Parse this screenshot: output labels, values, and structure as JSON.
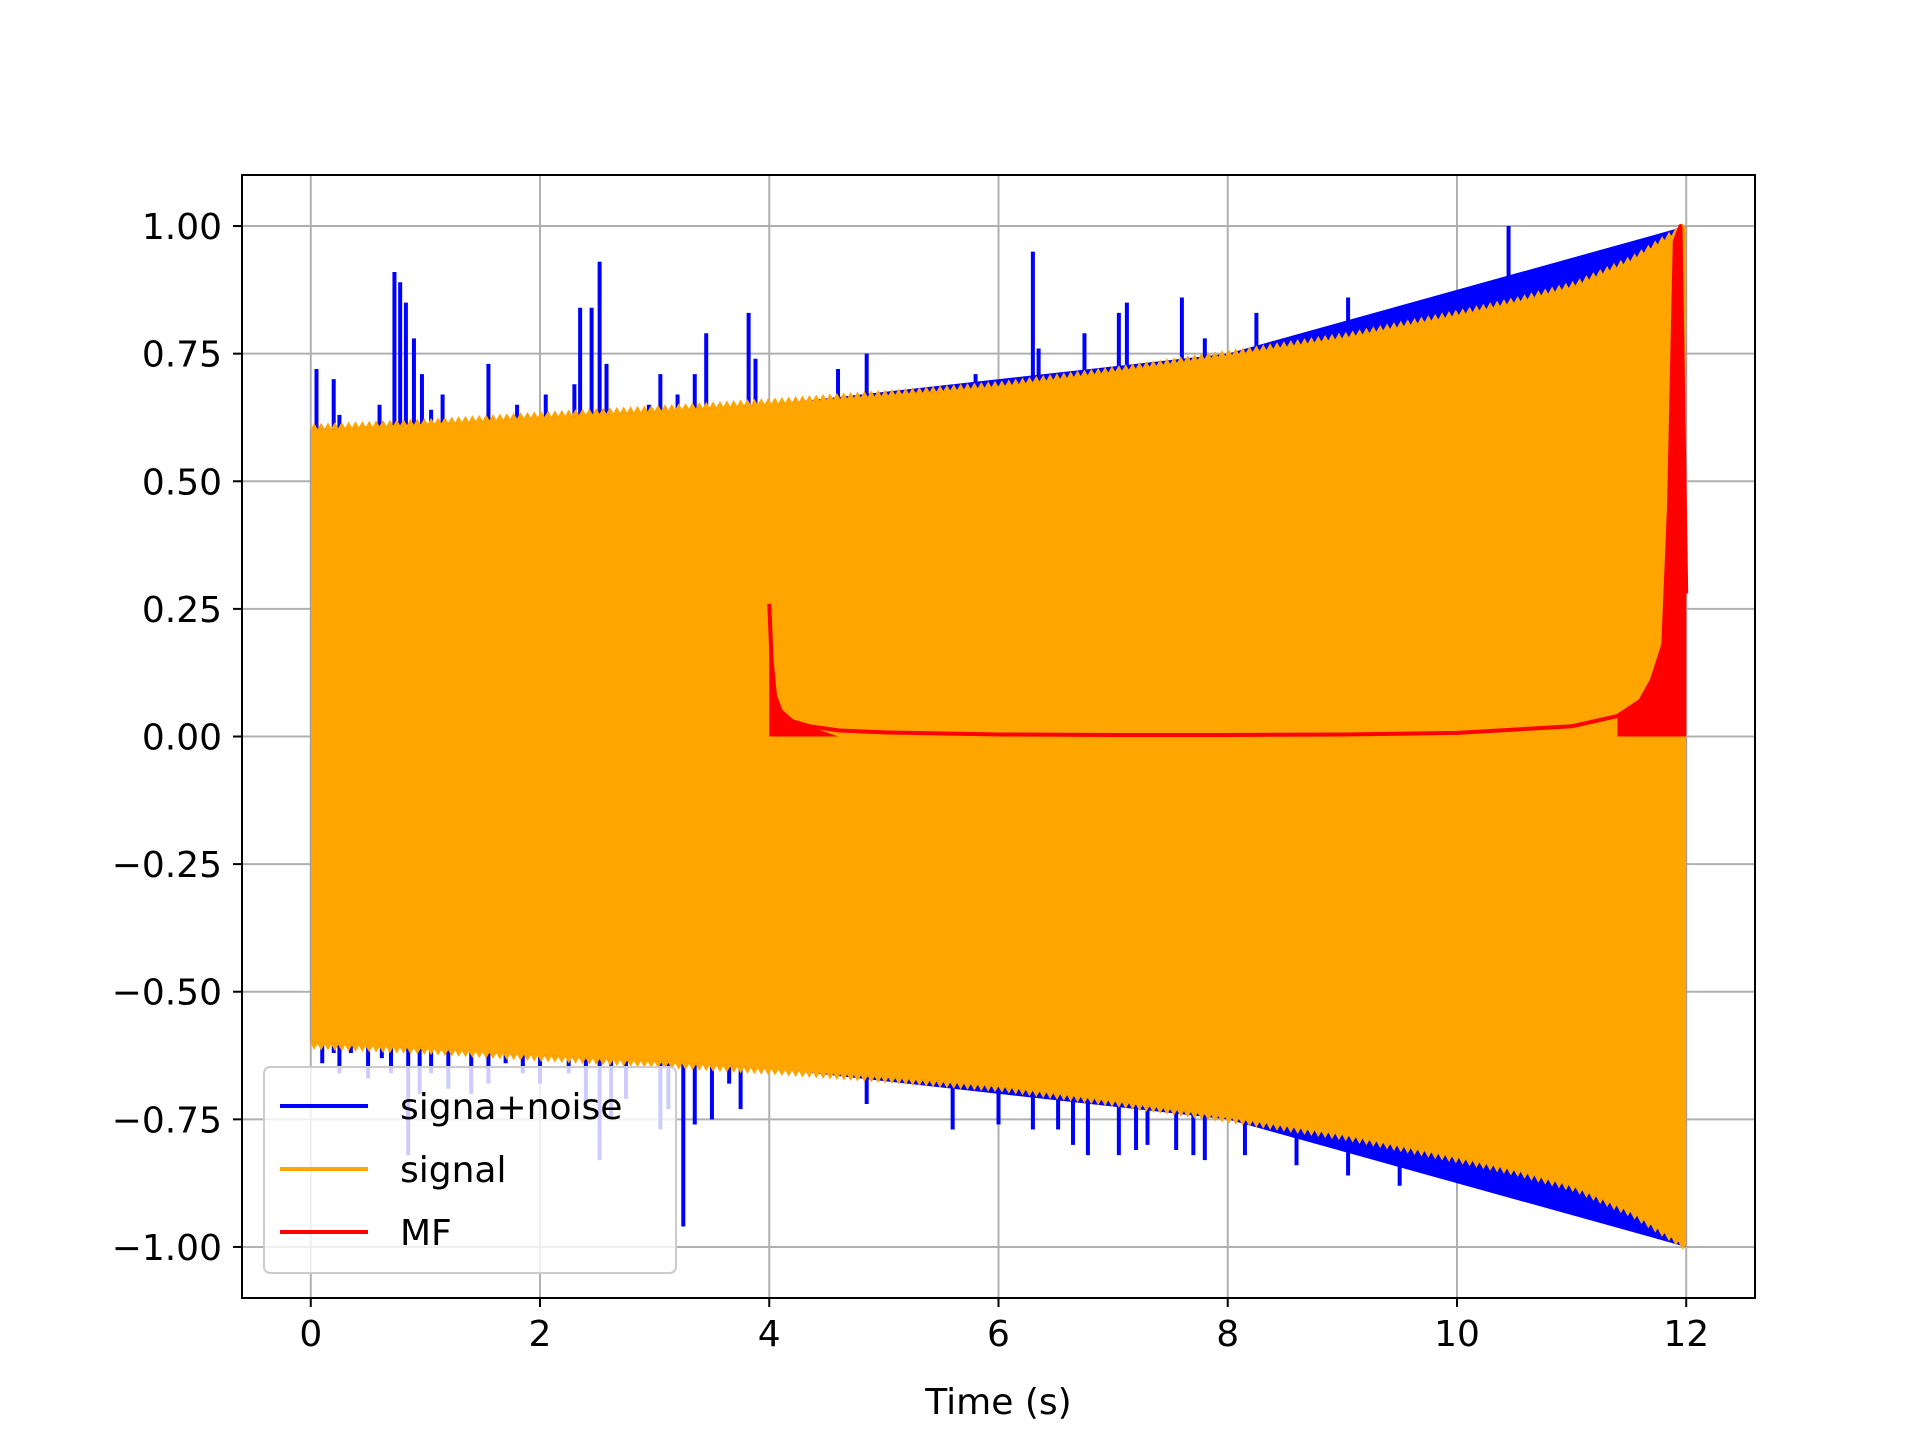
{
  "chart_data": {
    "type": "line",
    "title": "",
    "xlabel": "Time (s)",
    "ylabel": "",
    "xlim": [
      -0.6,
      12.6
    ],
    "ylim": [
      -1.1,
      1.1
    ],
    "grid": true,
    "legend_position": "lower-left",
    "x_ticks": [
      0,
      2,
      4,
      6,
      8,
      10,
      12
    ],
    "x_tick_labels": [
      "0",
      "2",
      "4",
      "6",
      "8",
      "10",
      "12"
    ],
    "y_ticks": [
      1.0,
      0.75,
      0.5,
      0.25,
      0.0,
      -0.25,
      -0.5,
      -0.75,
      -1.0
    ],
    "y_tick_labels": [
      "1.00",
      "0.75",
      "0.50",
      "0.25",
      "0.00",
      "−0.25",
      "−0.50",
      "−0.75",
      "−1.00"
    ],
    "series": [
      {
        "name": "signa+noise",
        "color": "#0000ff",
        "envelope": {
          "x": [
            0,
            4,
            8,
            12
          ],
          "upper": [
            0.6,
            0.65,
            0.75,
            1.0
          ],
          "lower": [
            -0.6,
            -0.65,
            -0.75,
            -1.0
          ]
        },
        "spikes": [
          {
            "x": 0.05,
            "y": 0.72
          },
          {
            "x": 0.2,
            "y": 0.7
          },
          {
            "x": 0.25,
            "y": 0.63
          },
          {
            "x": 0.6,
            "y": 0.65
          },
          {
            "x": 0.73,
            "y": 0.91
          },
          {
            "x": 0.78,
            "y": 0.89
          },
          {
            "x": 0.83,
            "y": 0.85
          },
          {
            "x": 0.9,
            "y": 0.78
          },
          {
            "x": 0.97,
            "y": 0.71
          },
          {
            "x": 1.05,
            "y": 0.64
          },
          {
            "x": 1.15,
            "y": 0.67
          },
          {
            "x": 1.55,
            "y": 0.73
          },
          {
            "x": 1.8,
            "y": 0.65
          },
          {
            "x": 2.05,
            "y": 0.67
          },
          {
            "x": 2.3,
            "y": 0.69
          },
          {
            "x": 2.35,
            "y": 0.84
          },
          {
            "x": 2.45,
            "y": 0.84
          },
          {
            "x": 2.52,
            "y": 0.93
          },
          {
            "x": 2.58,
            "y": 0.73
          },
          {
            "x": 2.95,
            "y": 0.65
          },
          {
            "x": 3.05,
            "y": 0.71
          },
          {
            "x": 3.2,
            "y": 0.67
          },
          {
            "x": 3.35,
            "y": 0.71
          },
          {
            "x": 3.45,
            "y": 0.79
          },
          {
            "x": 3.82,
            "y": 0.83
          },
          {
            "x": 3.88,
            "y": 0.74
          },
          {
            "x": 4.6,
            "y": 0.72
          },
          {
            "x": 4.85,
            "y": 0.75
          },
          {
            "x": 5.8,
            "y": 0.71
          },
          {
            "x": 6.3,
            "y": 0.95
          },
          {
            "x": 6.35,
            "y": 0.76
          },
          {
            "x": 6.65,
            "y": 0.71
          },
          {
            "x": 6.75,
            "y": 0.79
          },
          {
            "x": 7.05,
            "y": 0.83
          },
          {
            "x": 7.12,
            "y": 0.85
          },
          {
            "x": 7.6,
            "y": 0.86
          },
          {
            "x": 7.8,
            "y": 0.78
          },
          {
            "x": 8.25,
            "y": 0.83
          },
          {
            "x": 9.05,
            "y": 0.86
          },
          {
            "x": 10.45,
            "y": 1.0
          },
          {
            "x": 0.1,
            "y": -0.64
          },
          {
            "x": 0.2,
            "y": -0.62
          },
          {
            "x": 0.25,
            "y": -0.66
          },
          {
            "x": 0.35,
            "y": -0.62
          },
          {
            "x": 0.5,
            "y": -0.67
          },
          {
            "x": 0.62,
            "y": -0.63
          },
          {
            "x": 0.7,
            "y": -0.66
          },
          {
            "x": 0.85,
            "y": -0.82
          },
          {
            "x": 0.95,
            "y": -0.7
          },
          {
            "x": 1.05,
            "y": -0.66
          },
          {
            "x": 1.2,
            "y": -0.69
          },
          {
            "x": 1.4,
            "y": -0.7
          },
          {
            "x": 1.55,
            "y": -0.68
          },
          {
            "x": 1.7,
            "y": -0.64
          },
          {
            "x": 1.85,
            "y": -0.66
          },
          {
            "x": 2.0,
            "y": -0.68
          },
          {
            "x": 2.25,
            "y": -0.66
          },
          {
            "x": 2.4,
            "y": -0.73
          },
          {
            "x": 2.52,
            "y": -0.83
          },
          {
            "x": 2.62,
            "y": -0.75
          },
          {
            "x": 2.75,
            "y": -0.71
          },
          {
            "x": 3.05,
            "y": -0.77
          },
          {
            "x": 3.12,
            "y": -0.73
          },
          {
            "x": 3.25,
            "y": -0.96
          },
          {
            "x": 3.35,
            "y": -0.76
          },
          {
            "x": 3.5,
            "y": -0.75
          },
          {
            "x": 3.65,
            "y": -0.68
          },
          {
            "x": 3.75,
            "y": -0.73
          },
          {
            "x": 4.35,
            "y": -0.66
          },
          {
            "x": 4.85,
            "y": -0.72
          },
          {
            "x": 5.6,
            "y": -0.77
          },
          {
            "x": 6.0,
            "y": -0.76
          },
          {
            "x": 6.3,
            "y": -0.77
          },
          {
            "x": 6.52,
            "y": -0.77
          },
          {
            "x": 6.65,
            "y": -0.8
          },
          {
            "x": 6.78,
            "y": -0.82
          },
          {
            "x": 7.05,
            "y": -0.82
          },
          {
            "x": 7.2,
            "y": -0.81
          },
          {
            "x": 7.3,
            "y": -0.8
          },
          {
            "x": 7.55,
            "y": -0.81
          },
          {
            "x": 7.7,
            "y": -0.82
          },
          {
            "x": 7.8,
            "y": -0.83
          },
          {
            "x": 8.15,
            "y": -0.82
          },
          {
            "x": 8.6,
            "y": -0.84
          },
          {
            "x": 9.05,
            "y": -0.86
          },
          {
            "x": 9.5,
            "y": -0.88
          }
        ]
      },
      {
        "name": "signal",
        "color": "#ffa500",
        "envelope": {
          "x": [
            0,
            1,
            2,
            3,
            4,
            5,
            6,
            7,
            8,
            9,
            10,
            10.5,
            11,
            11.5,
            12
          ],
          "upper": [
            0.6,
            0.61,
            0.624,
            0.636,
            0.65,
            0.666,
            0.684,
            0.713,
            0.745,
            0.779,
            0.824,
            0.849,
            0.88,
            0.93,
            1.0
          ],
          "lower": [
            -0.6,
            -0.61,
            -0.624,
            -0.636,
            -0.65,
            -0.666,
            -0.684,
            -0.713,
            -0.745,
            -0.779,
            -0.824,
            -0.849,
            -0.88,
            -0.93,
            -1.0
          ]
        }
      },
      {
        "name": "MF",
        "color": "#ff0000",
        "x": [
          4.0,
          4.02,
          4.05,
          4.1,
          4.2,
          4.35,
          4.6,
          5.0,
          6.0,
          7.0,
          8.0,
          9.0,
          10.0,
          11.0,
          11.4,
          11.6,
          11.7,
          11.8,
          11.85,
          11.9,
          11.95,
          12.0
        ],
        "values": [
          0.26,
          0.15,
          0.08,
          0.05,
          0.03,
          0.02,
          0.012,
          0.008,
          0.004,
          0.003,
          0.003,
          0.004,
          0.007,
          0.02,
          0.04,
          0.07,
          0.11,
          0.18,
          0.45,
          0.97,
          1.0,
          0.28
        ]
      }
    ],
    "legend": [
      "signa+noise",
      "signal",
      "MF"
    ]
  }
}
